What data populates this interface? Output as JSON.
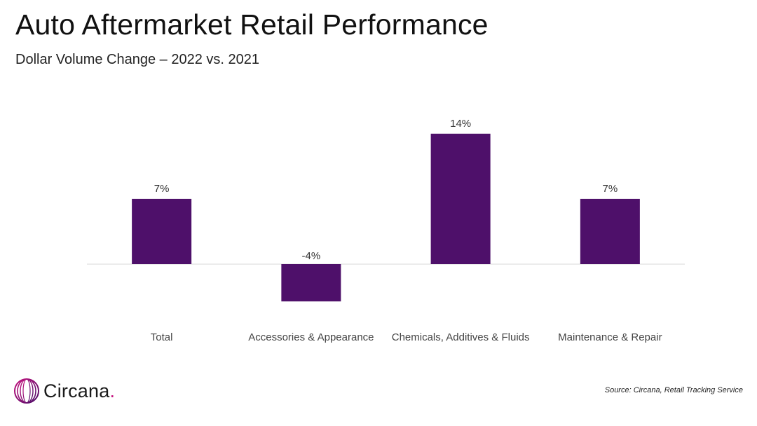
{
  "slide": {
    "title": "Auto Aftermarket Retail Performance",
    "subtitle": "Dollar Volume Change – 2022 vs. 2021"
  },
  "footer": {
    "logo_text": "Circana",
    "logo_dot": ".",
    "source": "Source: Circana, Retail Tracking Service"
  },
  "colors": {
    "bar": "#4e106a",
    "axis": "#d9d9d9",
    "logo_accent": "#c4127e"
  },
  "chart_data": {
    "type": "bar",
    "categories": [
      "Total",
      "Accessories & Appearance",
      "Chemicals, Additives & Fluids",
      "Maintenance & Repair"
    ],
    "values": [
      7,
      -4,
      14,
      7
    ],
    "data_labels": [
      "7%",
      "-4%",
      "14%",
      "7%"
    ],
    "title": "Auto Aftermarket Retail Performance",
    "subtitle": "Dollar Volume Change – 2022 vs. 2021",
    "ylim": [
      -4,
      14
    ],
    "grid": false,
    "legend": "none"
  }
}
